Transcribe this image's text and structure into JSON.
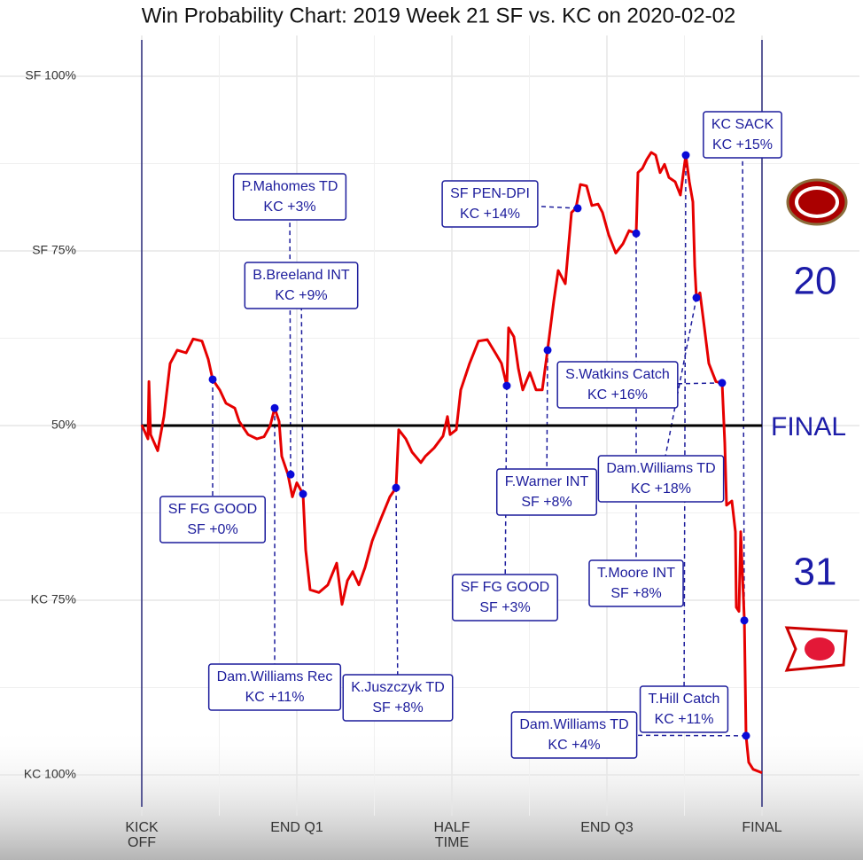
{
  "chart_data": {
    "type": "line",
    "title": "Win Probability Chart: 2019 Week 21 SF vs. KC on 2020-02-02",
    "x": [
      0,
      0.6,
      0.69,
      0.86,
      1.54,
      2.14,
      2.74,
      3.43,
      4.29,
      4.97,
      5.83,
      6.43,
      6.86,
      7.54,
      8.14,
      9.0,
      9.43,
      10.29,
      11.14,
      11.83,
      12.43,
      12.86,
      13.29,
      13.54,
      14.14,
      14.57,
      15.0,
      15.6,
      15.86,
      16.29,
      17.14,
      18.0,
      18.86,
      19.37,
      19.89,
      20.4,
      21.0,
      21.6,
      22.29,
      23.14,
      24.0,
      24.6,
      24.86,
      25.54,
      26.14,
      27.0,
      27.43,
      28.29,
      29.14,
      29.57,
      29.83,
      30.43,
      30.86,
      31.71,
      32.57,
      33.43,
      34.29,
      34.8,
      35.31,
      35.49,
      36.0,
      36.43,
      36.86,
      37.54,
      38.14,
      38.74,
      39.26,
      39.86,
      40.29,
      40.97,
      41.57,
      42.0,
      42.43,
      43.03,
      43.54,
      44.14,
      44.57,
      45.17,
      45.86,
      46.54,
      47.14,
      47.83,
      48.0,
      48.43,
      48.86,
      49.29,
      49.71,
      50.14,
      50.57,
      51.0,
      51.6,
      52.11,
      52.63,
      52.97,
      53.31,
      53.49,
      53.66,
      54.0,
      54.43,
      54.86,
      55.54,
      56.14,
      56.4,
      56.57,
      57.09,
      57.43,
      57.51,
      57.77,
      57.94,
      58.29,
      58.46,
      58.71,
      59.14,
      60
    ],
    "values": [
      50.1,
      48.1,
      56.3,
      48.7,
      46.4,
      51.3,
      58.9,
      60.8,
      60.4,
      62.4,
      62.1,
      59.5,
      56.6,
      55.1,
      53.2,
      52.5,
      50.6,
      48.7,
      48.1,
      48.4,
      50.0,
      52.5,
      50.6,
      45.6,
      43.0,
      39.8,
      41.8,
      40.2,
      32.2,
      26.5,
      26.1,
      27.2,
      30.3,
      24.4,
      27.8,
      29.1,
      27.2,
      29.7,
      33.5,
      36.7,
      39.8,
      41.1,
      49.4,
      48.1,
      46.2,
      44.7,
      45.6,
      46.8,
      48.5,
      51.3,
      48.7,
      49.4,
      55.1,
      58.9,
      62.1,
      62.3,
      60.2,
      58.9,
      55.7,
      64.0,
      62.7,
      58.2,
      55.1,
      57.6,
      55.1,
      55.1,
      60.8,
      67.8,
      72.2,
      70.3,
      80.5,
      81.1,
      84.5,
      84.3,
      81.5,
      81.7,
      80.5,
      77.3,
      74.7,
      76.0,
      77.9,
      77.5,
      86.2,
      86.8,
      88.1,
      89.1,
      88.7,
      86.2,
      87.4,
      85.5,
      84.9,
      83.0,
      88.7,
      84.9,
      82.0,
      72.8,
      68.3,
      69.0,
      64.0,
      58.9,
      56.3,
      56.1,
      47.5,
      38.6,
      39.2,
      34.8,
      24.0,
      23.4,
      34.8,
      22.1,
      5.6,
      1.8,
      0.8,
      0.3
    ],
    "color": "#e60000",
    "marker_color": "#0a0ad8",
    "annotation_color": "#1c1c9c",
    "annotations": [
      {
        "x": 6.86,
        "value": 56.6,
        "play": "SF FG GOOD",
        "change": "SF +0%"
      },
      {
        "x": 12.86,
        "value": 52.5,
        "play": "Dam.Williams Rec",
        "change": "KC +11%"
      },
      {
        "x": 14.4,
        "value": 43.0,
        "play": "P.Mahomes TD",
        "change": "KC +3%"
      },
      {
        "x": 15.6,
        "value": 40.2,
        "play": "B.Breeland INT",
        "change": "KC +9%"
      },
      {
        "x": 24.6,
        "value": 41.1,
        "play": "K.Juszczyk TD",
        "change": "SF +8%"
      },
      {
        "x": 35.31,
        "value": 55.7,
        "play": "SF FG GOOD",
        "change": "SF +3%"
      },
      {
        "x": 39.26,
        "value": 60.8,
        "play": "F.Warner INT",
        "change": "SF +8%"
      },
      {
        "x": 42.17,
        "value": 81.1,
        "play": "SF PEN-DPI",
        "change": "KC +14%"
      },
      {
        "x": 56.14,
        "value": 56.1,
        "play": "S.Watkins Catch",
        "change": "KC +16%"
      },
      {
        "x": 53.66,
        "value": 68.3,
        "play": "Dam.Williams TD",
        "change": "KC +18%"
      },
      {
        "x": 47.83,
        "value": 77.5,
        "play": "T.Moore INT",
        "change": "SF +8%"
      },
      {
        "x": 52.63,
        "value": 88.7,
        "play": "T.Hill Catch",
        "change": "KC +11%"
      },
      {
        "x": 58.46,
        "value": 5.6,
        "play": "Dam.Williams TD",
        "change": "KC +4%"
      },
      {
        "x": 58.29,
        "value": 22.1,
        "play": "KC SACK",
        "change": "KC +15%"
      }
    ],
    "xlim": [
      0,
      60
    ],
    "xticks": [
      {
        "value": 0,
        "label": "KICK OFF"
      },
      {
        "value": 15,
        "label": "END Q1"
      },
      {
        "value": 30,
        "label": "HALF TIME"
      },
      {
        "value": 45,
        "label": "END Q3"
      },
      {
        "value": 60,
        "label": "FINAL"
      }
    ],
    "ylim": [
      0,
      100
    ],
    "yticks": [
      {
        "value": 0,
        "label": "KC 100%"
      },
      {
        "value": 25,
        "label": "KC 75%"
      },
      {
        "value": 50,
        "label": "50%"
      },
      {
        "value": 75,
        "label": "SF 75%"
      },
      {
        "value": 100,
        "label": "SF 100%"
      }
    ],
    "grid": true,
    "end_label": "FINAL",
    "final_scores": {
      "SF": 20,
      "KC": 31
    }
  }
}
